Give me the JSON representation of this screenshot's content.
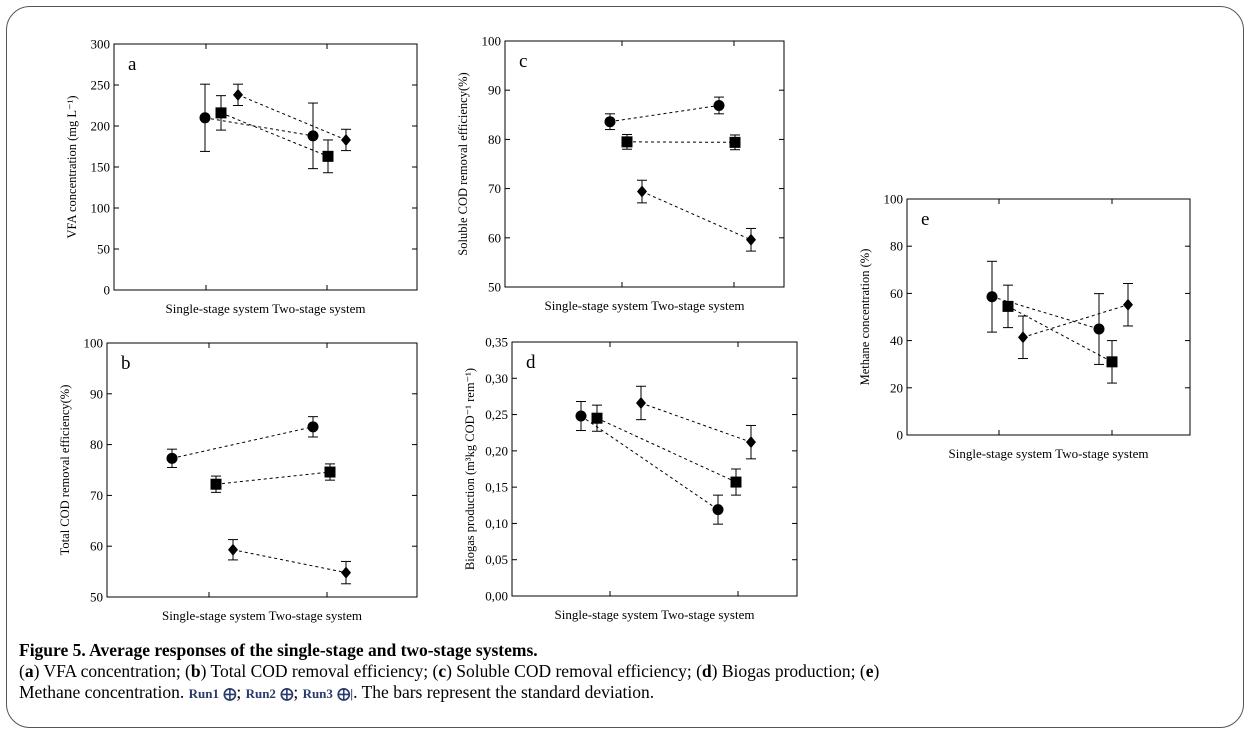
{
  "chart_data": [
    {
      "type": "scatter",
      "panel": "a",
      "ylabel": "VFA concentration (mg L⁻¹)",
      "ylim": [
        0,
        300
      ],
      "yticks": [
        0,
        50,
        100,
        150,
        200,
        250,
        300
      ],
      "categories": [
        "Single-stage system",
        "Two-stage system"
      ],
      "error_bars": true,
      "series": [
        {
          "marker": "circle",
          "values": [
            210,
            188
          ],
          "errors": [
            41,
            40
          ]
        },
        {
          "marker": "square",
          "values": [
            216,
            163
          ],
          "errors": [
            21,
            20
          ]
        },
        {
          "marker": "diamond",
          "values": [
            238,
            183
          ],
          "errors": [
            13,
            13
          ]
        }
      ]
    },
    {
      "type": "scatter",
      "panel": "b",
      "ylabel": "Total COD removal efficiency(%)",
      "ylim": [
        50,
        100
      ],
      "yticks": [
        50,
        60,
        70,
        80,
        90,
        100
      ],
      "categories": [
        "Single-stage system",
        "Two-stage system"
      ],
      "error_bars": true,
      "series": [
        {
          "marker": "circle",
          "values": [
            77.3,
            83.5
          ],
          "errors": [
            1.8,
            2.0
          ]
        },
        {
          "marker": "square",
          "values": [
            72.2,
            74.6
          ],
          "errors": [
            1.6,
            1.6
          ]
        },
        {
          "marker": "diamond",
          "values": [
            59.3,
            54.8
          ],
          "errors": [
            2.0,
            2.2
          ]
        }
      ]
    },
    {
      "type": "scatter",
      "panel": "c",
      "ylabel": "Soluble COD removal efficiency(%)",
      "ylim": [
        50,
        100
      ],
      "yticks": [
        50,
        60,
        70,
        80,
        90,
        100
      ],
      "categories": [
        "Single-stage system",
        "Two-stage system"
      ],
      "error_bars": true,
      "series": [
        {
          "marker": "circle",
          "values": [
            83.6,
            86.9
          ],
          "errors": [
            1.6,
            1.7
          ]
        },
        {
          "marker": "square",
          "values": [
            79.5,
            79.4
          ],
          "errors": [
            1.5,
            1.5
          ]
        },
        {
          "marker": "diamond",
          "values": [
            69.4,
            59.6
          ],
          "errors": [
            2.3,
            2.3
          ]
        }
      ]
    },
    {
      "type": "scatter",
      "panel": "d",
      "ylabel": "Biogas production (m³kg COD⁻¹ rem⁻¹)",
      "ylim": [
        0,
        0.35
      ],
      "yticks": [
        "0,00",
        "0,05",
        "0,10",
        "0,15",
        "0,20",
        "0,25",
        "0,30",
        "0,35"
      ],
      "categories": [
        "Single-stage system",
        "Two-stage system"
      ],
      "error_bars": true,
      "series": [
        {
          "marker": "circle",
          "values": [
            0.248,
            0.119
          ],
          "errors": [
            0.02,
            0.02
          ]
        },
        {
          "marker": "square",
          "values": [
            0.245,
            0.157
          ],
          "errors": [
            0.018,
            0.018
          ]
        },
        {
          "marker": "diamond",
          "values": [
            0.266,
            0.212
          ],
          "errors": [
            0.023,
            0.023
          ]
        }
      ]
    },
    {
      "type": "scatter",
      "panel": "e",
      "ylabel": "Methane concentration (%)",
      "ylim": [
        0,
        100
      ],
      "yticks": [
        0,
        20,
        40,
        60,
        80,
        100
      ],
      "categories": [
        "Single-stage system",
        "Two-stage system"
      ],
      "error_bars": true,
      "series": [
        {
          "marker": "circle",
          "values": [
            58.6,
            44.9
          ],
          "errors": [
            15,
            15
          ]
        },
        {
          "marker": "square",
          "values": [
            54.5,
            31.0
          ],
          "errors": [
            9,
            9
          ]
        },
        {
          "marker": "diamond",
          "values": [
            41.4,
            55.2
          ],
          "errors": [
            9,
            9
          ]
        }
      ]
    }
  ],
  "caption": {
    "title": "Figure 5. Average responses of the single-stage and two-stage systems.",
    "line2": [
      {
        "t": "(",
        "b": false
      },
      {
        "t": "a",
        "b": true
      },
      {
        "t": ") VFA concentration; (",
        "b": false
      },
      {
        "t": "b",
        "b": true
      },
      {
        "t": ") Total COD removal efficiency; (",
        "b": false
      },
      {
        "t": "c",
        "b": true
      },
      {
        "t": ") Soluble COD removal efficiency; (",
        "b": false
      },
      {
        "t": "d",
        "b": true
      },
      {
        "t": ") Biogas production; (",
        "b": false
      },
      {
        "t": "e",
        "b": true
      },
      {
        "t": ")",
        "b": false
      }
    ],
    "line3_start": "Methane concentration.",
    "run1": "Run1",
    "run2": "Run2",
    "run3": "Run3",
    "sep": ";",
    "line3_end": ". The bars represent the standard deviation."
  }
}
